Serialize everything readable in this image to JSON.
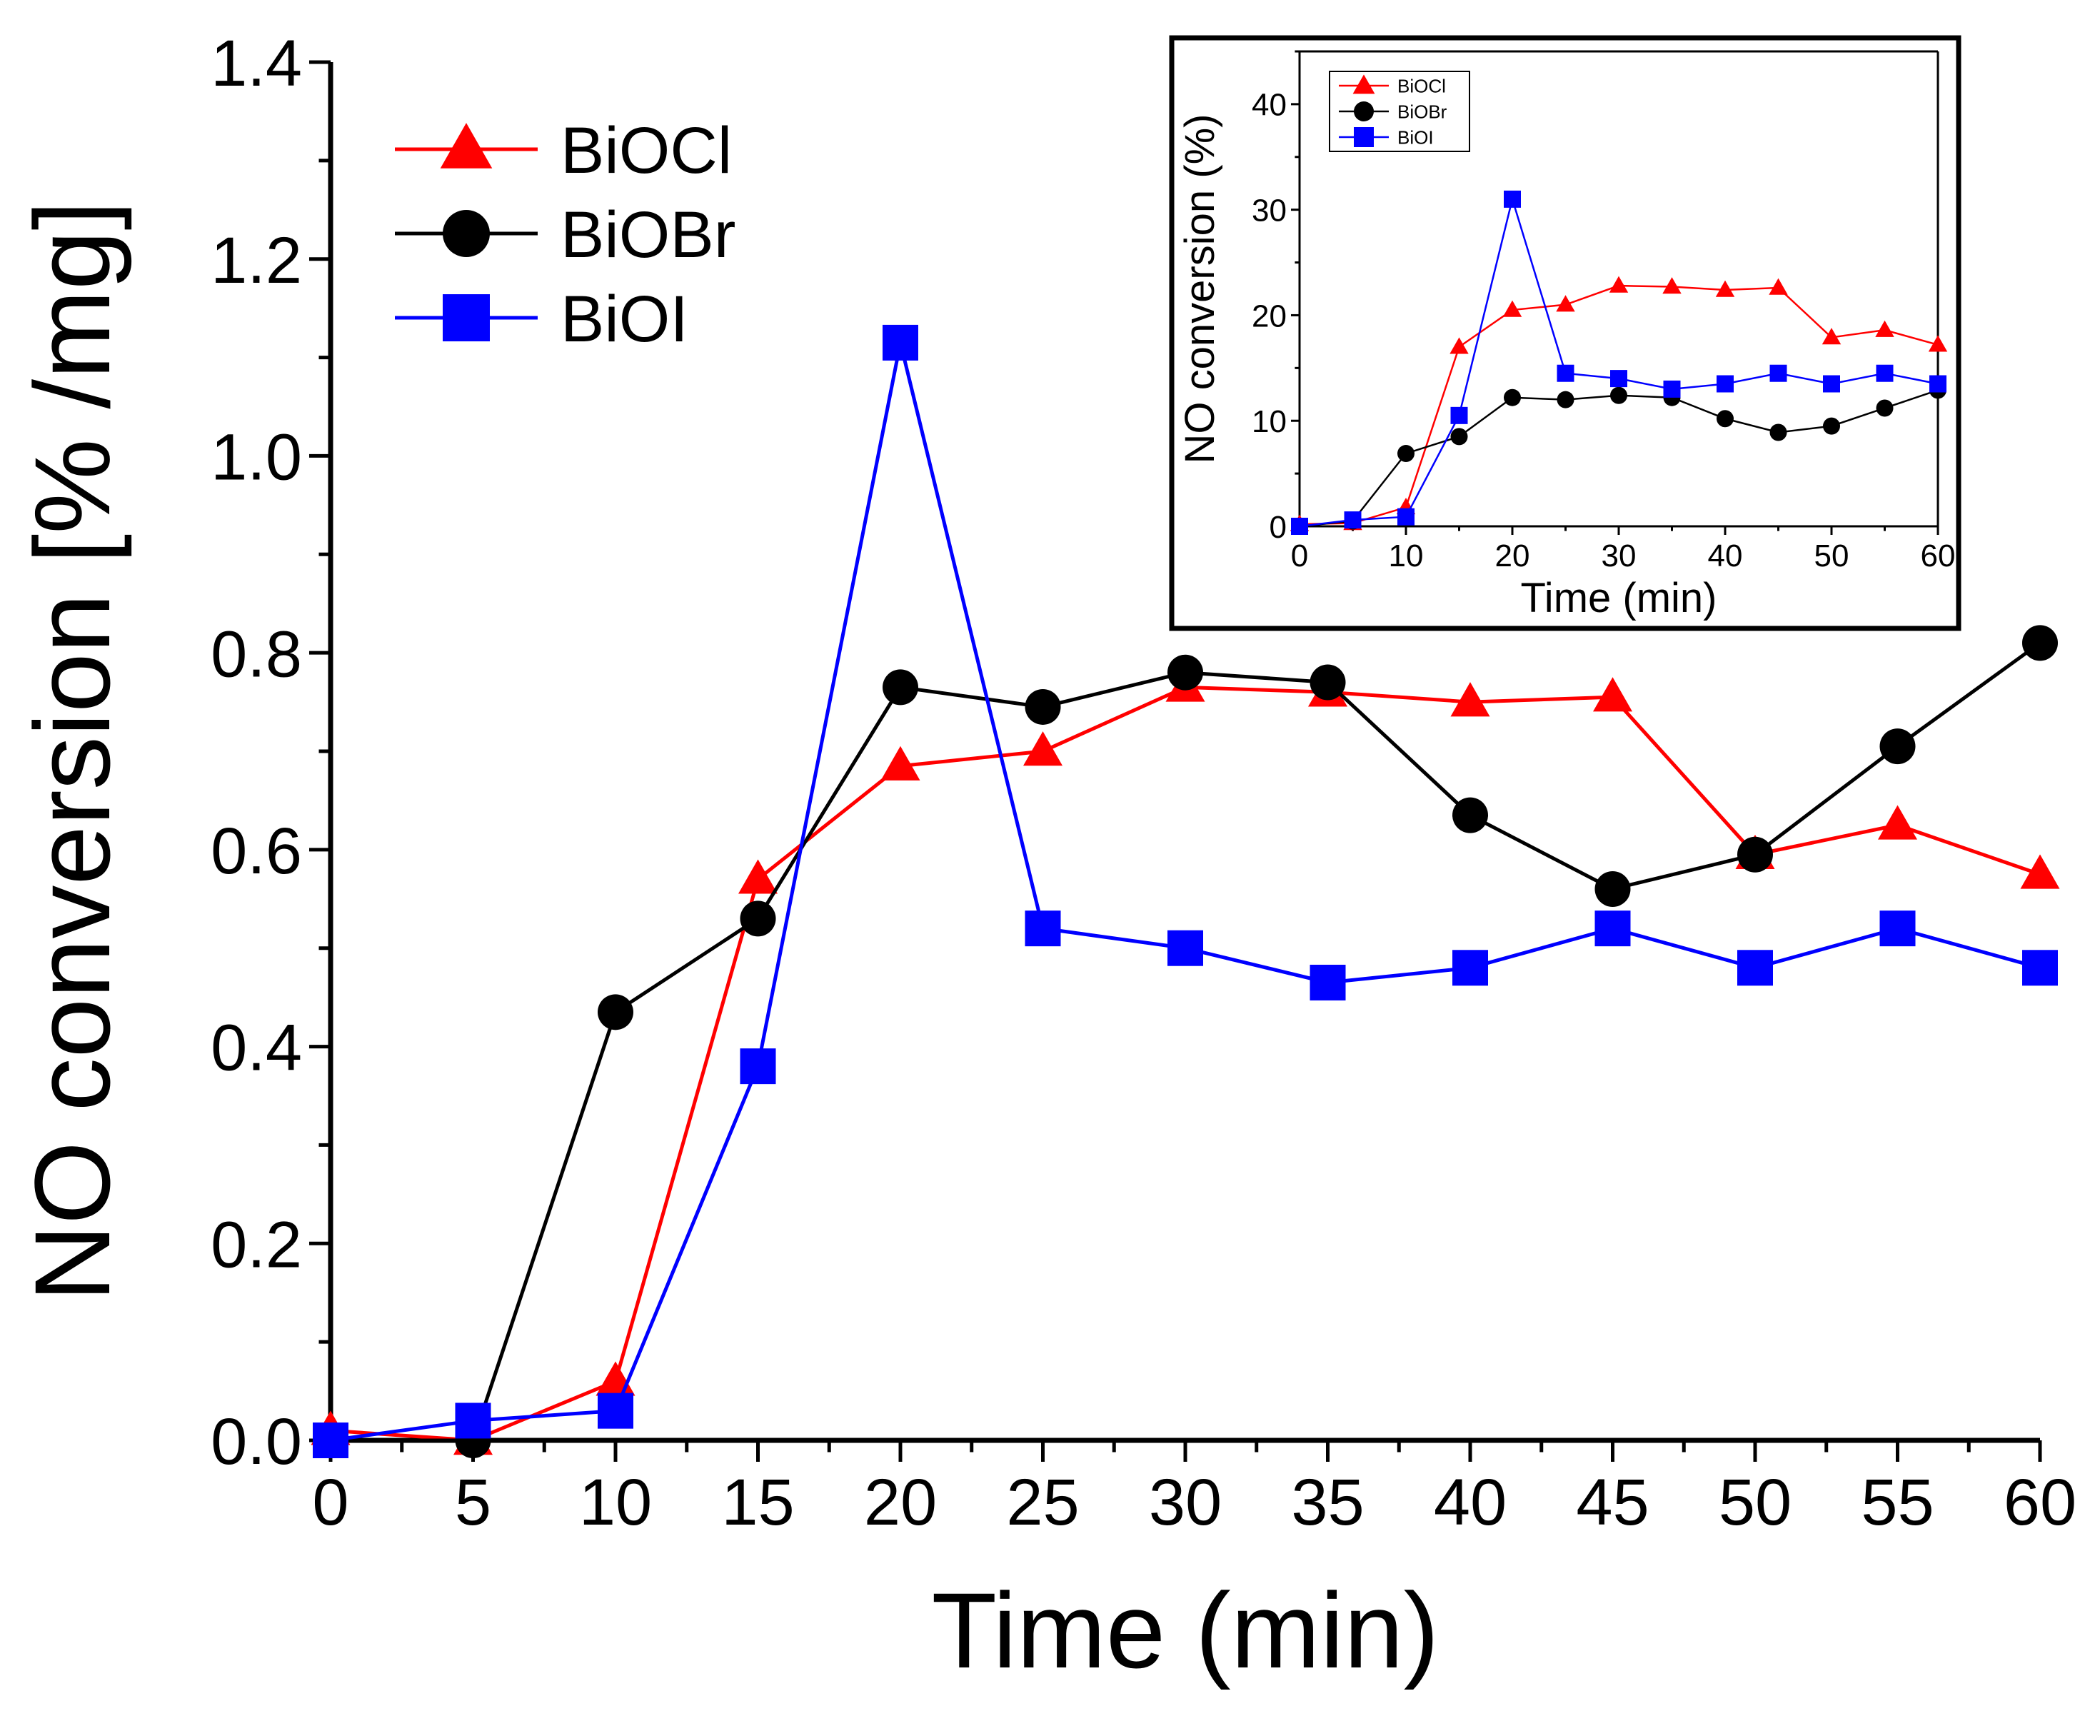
{
  "chart_data": [
    {
      "type": "line",
      "title": "",
      "xlabel": "Time (min)",
      "ylabel": "NO conversion [% /mg]",
      "xlim": [
        0,
        60
      ],
      "ylim": [
        0,
        1.4
      ],
      "x_ticks": [
        "0",
        "5",
        "10",
        "15",
        "20",
        "25",
        "30",
        "35",
        "40",
        "45",
        "50",
        "55",
        "60"
      ],
      "y_ticks": [
        "0.0",
        "0.2",
        "0.4",
        "0.6",
        "0.8",
        "1.0",
        "1.2",
        "1.4"
      ],
      "grid": false,
      "legend_position": "top-left",
      "x": [
        0,
        5,
        10,
        15,
        20,
        25,
        30,
        35,
        40,
        45,
        50,
        55,
        60
      ],
      "series": [
        {
          "name": "BiOCl",
          "marker": "triangle",
          "color": "#ff0000",
          "values": [
            0.01,
            0.0,
            0.06,
            0.57,
            0.685,
            0.7,
            0.765,
            0.76,
            0.75,
            0.755,
            0.595,
            0.625,
            0.575
          ]
        },
        {
          "name": "BiOBr",
          "marker": "circle",
          "color": "#000000",
          "values": [
            0.0,
            0.0,
            0.435,
            0.53,
            0.765,
            0.745,
            0.78,
            0.77,
            0.635,
            0.56,
            0.595,
            0.705,
            0.81
          ]
        },
        {
          "name": "BiOI",
          "marker": "square",
          "color": "#0000ff",
          "values": [
            0.0,
            0.02,
            0.03,
            0.38,
            1.115,
            0.52,
            0.5,
            0.465,
            0.48,
            0.52,
            0.48,
            0.52,
            0.48
          ]
        }
      ]
    },
    {
      "type": "line",
      "title": "",
      "xlabel": "Time (min)",
      "ylabel": "NO conversion (%)",
      "xlim": [
        0,
        60
      ],
      "ylim": [
        0,
        45
      ],
      "x_ticks": [
        "0",
        "10",
        "20",
        "30",
        "40",
        "50",
        "60"
      ],
      "y_ticks": [
        "0",
        "10",
        "20",
        "30",
        "40"
      ],
      "grid": false,
      "legend_position": "top-left",
      "x": [
        0,
        5,
        10,
        15,
        20,
        25,
        30,
        35,
        40,
        45,
        50,
        55,
        60
      ],
      "series": [
        {
          "name": "BiOCl",
          "marker": "triangle",
          "color": "#ff0000",
          "values": [
            0.2,
            0.3,
            1.8,
            17.0,
            20.5,
            21.0,
            22.8,
            22.7,
            22.4,
            22.6,
            17.9,
            18.6,
            17.2
          ]
        },
        {
          "name": "BiOBr",
          "marker": "circle",
          "color": "#000000",
          "values": [
            0.0,
            0.5,
            6.9,
            8.5,
            12.2,
            12.0,
            12.4,
            12.2,
            10.2,
            8.9,
            9.5,
            11.2,
            12.9
          ]
        },
        {
          "name": "BiOI",
          "marker": "square",
          "color": "#0000ff",
          "values": [
            0.0,
            0.6,
            0.9,
            10.5,
            31.0,
            14.5,
            14.0,
            13.0,
            13.5,
            14.5,
            13.5,
            14.5,
            13.5
          ]
        }
      ]
    }
  ]
}
